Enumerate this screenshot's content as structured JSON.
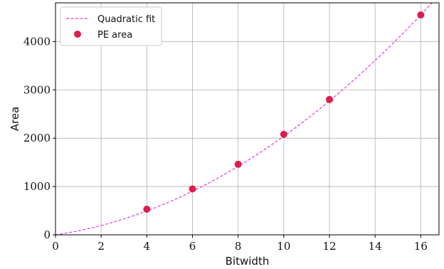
{
  "chart_data": {
    "type": "scatter",
    "xlabel": "Bitwidth",
    "ylabel": "Area",
    "xlim": [
      0,
      16.8
    ],
    "ylim": [
      0,
      4800
    ],
    "xticks": [
      0,
      2,
      4,
      6,
      8,
      10,
      12,
      14,
      16
    ],
    "yticks": [
      0,
      1000,
      2000,
      3000,
      4000
    ],
    "grid": true,
    "legend_position": "top-left",
    "series": [
      {
        "name": "Quadratic fit",
        "kind": "line",
        "style": "dashed",
        "color": "#e83ad6",
        "coefficients": {
          "a": 13.4,
          "b": 70.0,
          "c": 0.0
        }
      },
      {
        "name": "PE area",
        "kind": "scatter",
        "color": "#dc1c4e",
        "x": [
          4,
          6,
          8,
          10,
          12,
          16
        ],
        "y": [
          530,
          950,
          1460,
          2080,
          2800,
          4550
        ]
      }
    ]
  }
}
